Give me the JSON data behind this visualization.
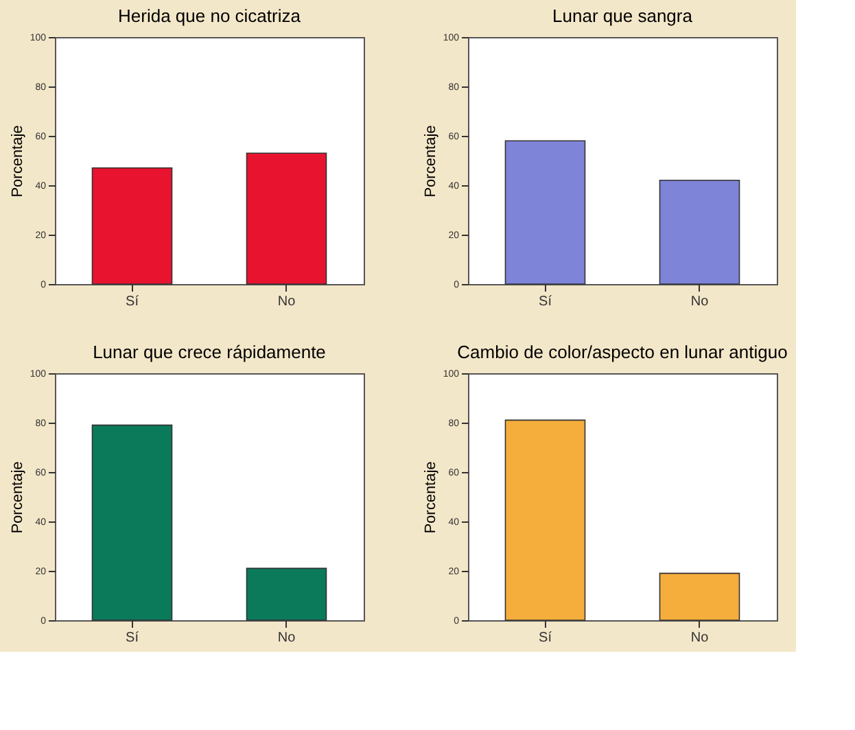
{
  "chart_data": [
    {
      "type": "bar",
      "title": "Herida que no cicatriza",
      "ylabel": "Porcentaje",
      "categories": [
        "Sí",
        "No"
      ],
      "values": [
        47,
        53
      ],
      "color": "#e8142f",
      "ylim": [
        0,
        100
      ],
      "yticks": [
        0,
        20,
        40,
        60,
        80,
        100
      ],
      "grid": false
    },
    {
      "type": "bar",
      "title": "Lunar que sangra",
      "ylabel": "Porcentaje",
      "categories": [
        "Sí",
        "No"
      ],
      "values": [
        58,
        42
      ],
      "color": "#7e84d8",
      "ylim": [
        0,
        100
      ],
      "yticks": [
        0,
        20,
        40,
        60,
        80,
        100
      ],
      "grid": false
    },
    {
      "type": "bar",
      "title": "Lunar que crece rápidamente",
      "ylabel": "Porcentaje",
      "categories": [
        "Sí",
        "No"
      ],
      "values": [
        79,
        21
      ],
      "color": "#0a7a5a",
      "ylim": [
        0,
        100
      ],
      "yticks": [
        0,
        20,
        40,
        60,
        80,
        100
      ],
      "grid": false
    },
    {
      "type": "bar",
      "title": "Cambio de color/aspecto en lunar antiguo",
      "ylabel": "Porcentaje",
      "categories": [
        "Sí",
        "No"
      ],
      "values": [
        81,
        19
      ],
      "color": "#f5ad3c",
      "ylim": [
        0,
        100
      ],
      "yticks": [
        0,
        20,
        40,
        60,
        80,
        100
      ],
      "grid": false
    }
  ]
}
